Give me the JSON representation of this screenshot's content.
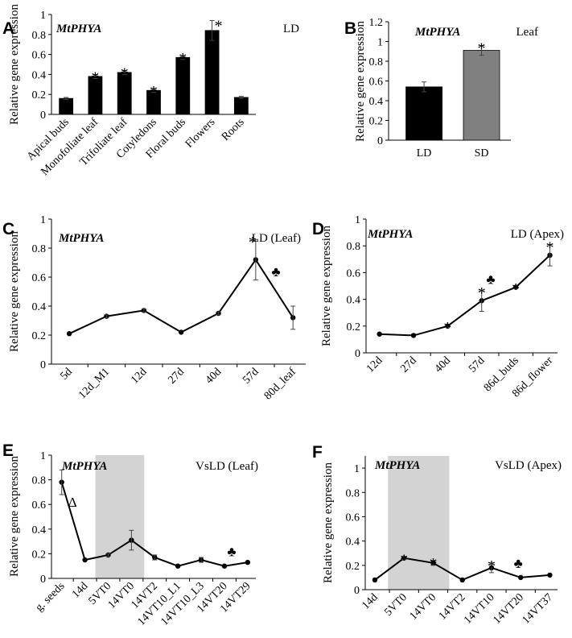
{
  "chart_data": [
    {
      "panel": "A",
      "type": "bar",
      "gene": "MtPHYA",
      "condition": "LD",
      "ylabel": "Relative gene expression",
      "ylim": [
        0,
        1
      ],
      "ytick_step": 0.2,
      "categories": [
        "Apical buds",
        "Monofoliate leaf",
        "Trifoliate leaf",
        "Cotyledons",
        "Floral buds",
        "Flowers",
        "Roots"
      ],
      "values": [
        0.16,
        0.38,
        0.42,
        0.24,
        0.57,
        0.84,
        0.17
      ],
      "errors": [
        0.01,
        0.02,
        0.02,
        0.02,
        0.02,
        0.1,
        0.01
      ],
      "significant": [
        false,
        true,
        true,
        true,
        true,
        true,
        false
      ],
      "bar_color": "#000000"
    },
    {
      "panel": "B",
      "type": "bar",
      "gene": "MtPHYA",
      "condition": "Leaf",
      "ylabel": "Relative gene expression",
      "ylim": [
        0,
        1.2
      ],
      "ytick_step": 0.2,
      "categories": [
        "LD",
        "SD"
      ],
      "values": [
        0.54,
        0.91
      ],
      "errors": [
        0.05,
        0.05
      ],
      "significant": [
        false,
        true
      ],
      "bar_colors": [
        "#000000",
        "#808080"
      ]
    },
    {
      "panel": "C",
      "type": "line",
      "gene": "MtPHYA",
      "condition": "LD (Leaf)",
      "ylabel": "Relative  gene expression",
      "ylim": [
        0,
        1
      ],
      "ytick_step": 0.2,
      "categories": [
        "5d",
        "12d_M1",
        "12d",
        "27d",
        "40d",
        "57d",
        "80d_leaf"
      ],
      "values": [
        0.21,
        0.33,
        0.37,
        0.22,
        0.35,
        0.72,
        0.32
      ],
      "errors": [
        0,
        0.01,
        0.01,
        0,
        0.01,
        0.14,
        0.08
      ],
      "significant": [
        false,
        false,
        false,
        false,
        false,
        true,
        false
      ],
      "club_marker": "♣"
    },
    {
      "panel": "D",
      "type": "line",
      "gene": "MtPHYA",
      "condition": "LD (Apex)",
      "ylabel": "Relative gene expression",
      "ylim": [
        0,
        1
      ],
      "ytick_step": 0.2,
      "categories": [
        "12d",
        "27d",
        "40d",
        "57d",
        "86d_buds",
        "86d_flower"
      ],
      "values": [
        0.14,
        0.13,
        0.2,
        0.39,
        0.49,
        0.73
      ],
      "errors": [
        0,
        0,
        0.01,
        0.08,
        0.01,
        0.08
      ],
      "significant": [
        false,
        false,
        true,
        true,
        true,
        true
      ],
      "club_marker": "♣"
    },
    {
      "panel": "E",
      "type": "line",
      "gene": "MtPHYA",
      "condition": "VsLD (Leaf)",
      "ylabel": "Relative gene expression",
      "ylim": [
        0,
        1
      ],
      "ytick_step": 0.2,
      "categories": [
        "g. seeds",
        "14d",
        "5VT0",
        "14VT0",
        "14VT2",
        "14VT10_L1",
        "14VT10_L3",
        "14VT20",
        "14VT29"
      ],
      "values": [
        0.78,
        0.15,
        0.19,
        0.31,
        0.17,
        0.1,
        0.15,
        0.1,
        0.13
      ],
      "errors": [
        0.1,
        0,
        0.01,
        0.08,
        0.02,
        0,
        0.02,
        0,
        0
      ],
      "delta_marker": "Δ",
      "club_marker": "♣",
      "shaded_range": [
        "5VT0",
        "14VT0"
      ]
    },
    {
      "panel": "F",
      "type": "line",
      "gene": "MtPHYA",
      "condition": "VsLD (Apex)",
      "ylabel": "Relative gene expression",
      "ylim": [
        0,
        1.1
      ],
      "ytick_step": 0.2,
      "categories": [
        "14d",
        "5VT0",
        "14VT0",
        "14VT2",
        "14VT10",
        "14VT20",
        "14VT37"
      ],
      "values": [
        0.08,
        0.26,
        0.22,
        0.08,
        0.18,
        0.1,
        0.12
      ],
      "errors": [
        0,
        0.01,
        0.02,
        0,
        0.04,
        0,
        0
      ],
      "significant": [
        false,
        true,
        true,
        false,
        true,
        false,
        false
      ],
      "club_marker": "♣",
      "shaded_range": [
        "5VT0",
        "14VT0"
      ]
    }
  ],
  "colors": {
    "axis": "#000000",
    "shade": "#d3d3d3",
    "line": "#000000"
  },
  "markers": {
    "significance": "*"
  }
}
